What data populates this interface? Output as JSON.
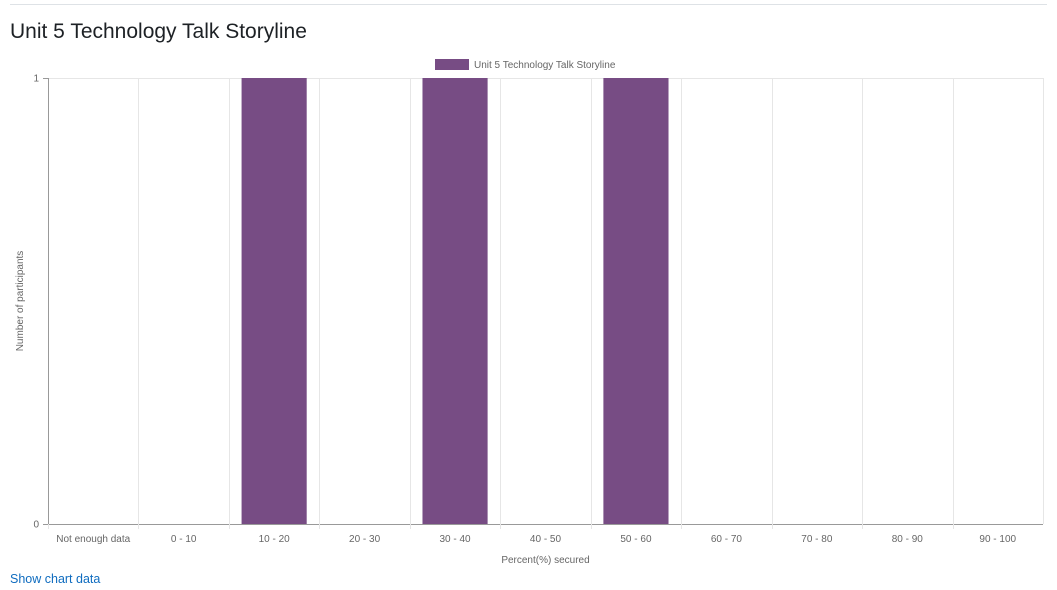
{
  "page": {
    "title": "Unit 5 Technology Talk Storyline",
    "show_data_link": "Show chart data"
  },
  "colors": {
    "bar": "#774c84",
    "grid": "#e6e6e6",
    "axis": "#999999",
    "tick_text": "#666666",
    "link": "#0f6cbf"
  },
  "chart_data": {
    "type": "bar",
    "categories": [
      "Not enough data",
      "0 - 10",
      "10 - 20",
      "20 - 30",
      "30 - 40",
      "40 - 50",
      "50 - 60",
      "60 - 70",
      "70 - 80",
      "80 - 90",
      "90 - 100"
    ],
    "series": [
      {
        "name": "Unit 5 Technology Talk Storyline",
        "values": [
          0,
          0,
          1,
          0,
          1,
          0,
          1,
          0,
          0,
          0,
          0
        ]
      }
    ],
    "xlabel": "Percent(%) secured",
    "ylabel": "Number of participants",
    "ylim": [
      0,
      1
    ],
    "yticks": [
      "0",
      "1"
    ],
    "legend": "top-center",
    "grid": true
  }
}
